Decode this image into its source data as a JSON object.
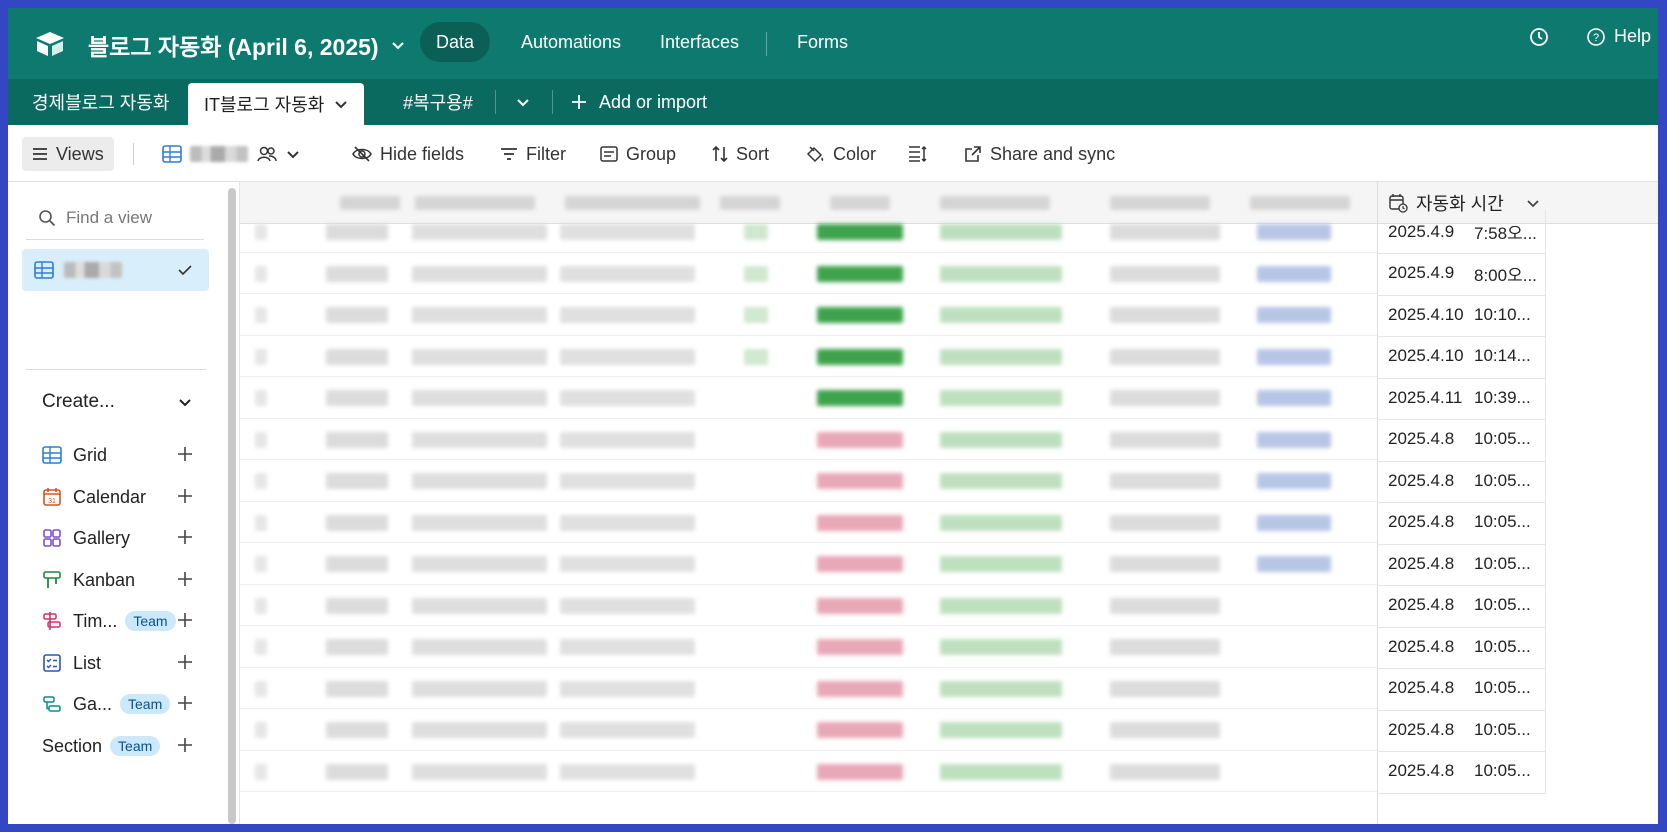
{
  "base": {
    "title": "블로그 자동화 (April 6, 2025)"
  },
  "nav": {
    "data": "Data",
    "automations": "Automations",
    "interfaces": "Interfaces",
    "forms": "Forms"
  },
  "top_right": {
    "help": "Help"
  },
  "tables": [
    {
      "label": "경제블로그 자동화"
    },
    {
      "label": "IT블로그 자동화"
    },
    {
      "label": "#복구용#"
    }
  ],
  "add_import": "Add or import",
  "toolbar": {
    "views": "Views",
    "hide_fields": "Hide fields",
    "filter": "Filter",
    "group": "Group",
    "sort": "Sort",
    "color": "Color",
    "share_sync": "Share and sync"
  },
  "sidebar": {
    "find_placeholder": "Find a view",
    "create": "Create...",
    "items": [
      {
        "label": "Grid",
        "team": ""
      },
      {
        "label": "Calendar",
        "team": ""
      },
      {
        "label": "Gallery",
        "team": ""
      },
      {
        "label": "Kanban",
        "team": ""
      },
      {
        "label": "Tim...",
        "team": "Team"
      },
      {
        "label": "List",
        "team": ""
      },
      {
        "label": "Ga...",
        "team": "Team"
      },
      {
        "label": "Section",
        "team": "Team"
      }
    ]
  },
  "grid": {
    "date_column_header": "자동화 시간",
    "rows": [
      {
        "date": "2025.4.9",
        "time": "7:58오..."
      },
      {
        "date": "2025.4.9",
        "time": "8:00오..."
      },
      {
        "date": "2025.4.10",
        "time": "10:10..."
      },
      {
        "date": "2025.4.10",
        "time": "10:14..."
      },
      {
        "date": "2025.4.11",
        "time": "10:39..."
      },
      {
        "date": "2025.4.8",
        "time": "10:05..."
      },
      {
        "date": "2025.4.8",
        "time": "10:05..."
      },
      {
        "date": "2025.4.8",
        "time": "10:05..."
      },
      {
        "date": "2025.4.8",
        "time": "10:05..."
      },
      {
        "date": "2025.4.8",
        "time": "10:05..."
      },
      {
        "date": "2025.4.8",
        "time": "10:05..."
      },
      {
        "date": "2025.4.8",
        "time": "10:05..."
      },
      {
        "date": "2025.4.8",
        "time": "10:05..."
      },
      {
        "date": "2025.4.8",
        "time": "10:05..."
      }
    ]
  },
  "colors": {
    "topbar": "#0e7a6f",
    "tablesbar": "#0b6a60",
    "accent_blue": "#d9eefb",
    "frame": "#3347c4"
  }
}
